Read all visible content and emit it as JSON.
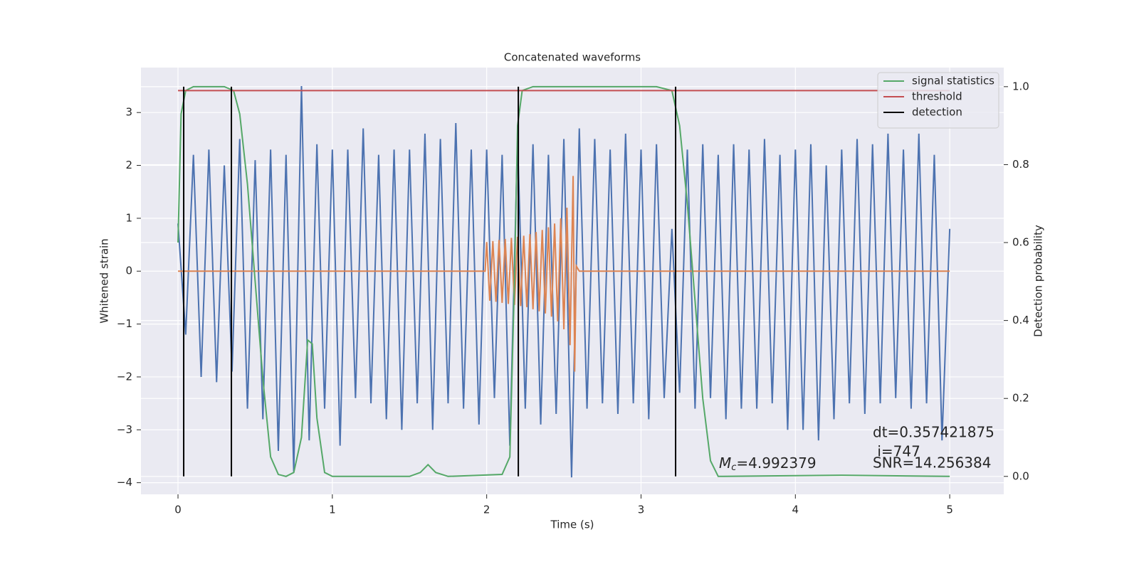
{
  "chart_data": {
    "type": "line",
    "title": "Concatenated waveforms",
    "xlabel": "Time (s)",
    "ylabel": "Whitened strain",
    "y2label": "Detection probability",
    "xlim": [
      -0.24,
      5.35
    ],
    "ylim": [
      -4.22,
      3.85
    ],
    "y2lim": [
      -0.046,
      1.049
    ],
    "xticks": [
      0,
      1,
      2,
      3,
      4,
      5
    ],
    "yticks": [
      {
        "value": -4,
        "label": "−4"
      },
      {
        "value": -3,
        "label": "−3"
      },
      {
        "value": -2,
        "label": "−2"
      },
      {
        "value": -1,
        "label": "−1"
      },
      0,
      1,
      2,
      3
    ],
    "y2ticks": [
      {
        "value": 0,
        "label": "0.0"
      },
      {
        "value": 0.2,
        "label": "0.2"
      },
      {
        "value": 0.4,
        "label": "0.4"
      },
      {
        "value": 0.6,
        "label": "0.6"
      },
      {
        "value": 0.8,
        "label": "0.8"
      },
      {
        "value": 1,
        "label": "1.0"
      }
    ],
    "grid": true,
    "legend": "upper right",
    "series": [
      {
        "color": "#4c72b0",
        "axis": "y",
        "x": [
          0,
          0.05,
          0.1,
          0.15,
          0.2,
          0.25,
          0.3,
          0.35,
          0.4,
          0.45,
          0.5,
          0.55,
          0.6,
          0.65,
          0.7,
          0.75,
          0.8,
          0.85,
          0.9,
          0.95,
          1.0,
          1.05,
          1.1,
          1.15,
          1.2,
          1.25,
          1.3,
          1.35,
          1.4,
          1.45,
          1.5,
          1.55,
          1.6,
          1.65,
          1.7,
          1.75,
          1.8,
          1.85,
          1.9,
          1.95,
          2.0,
          2.05,
          2.1,
          2.15,
          2.2,
          2.25,
          2.3,
          2.35,
          2.4,
          2.45,
          2.5,
          2.55,
          2.6,
          2.65,
          2.7,
          2.75,
          2.8,
          2.85,
          2.9,
          2.95,
          3.0,
          3.05,
          3.1,
          3.15,
          3.2,
          3.25,
          3.3,
          3.35,
          3.4,
          3.45,
          3.5,
          3.55,
          3.6,
          3.65,
          3.7,
          3.75,
          3.8,
          3.85,
          3.9,
          3.95,
          4.0,
          4.05,
          4.1,
          4.15,
          4.2,
          4.25,
          4.3,
          4.35,
          4.4,
          4.45,
          4.5,
          4.55,
          4.6,
          4.65,
          4.7,
          4.75,
          4.8,
          4.85,
          4.9,
          4.95,
          5.0
        ],
        "values": [
          0.9,
          -1.2,
          2.2,
          -2.0,
          2.3,
          -2.1,
          2.0,
          -1.9,
          2.5,
          -2.6,
          2.1,
          -2.8,
          2.3,
          -3.4,
          2.2,
          -3.8,
          3.5,
          -3.2,
          2.4,
          -2.6,
          2.3,
          -3.3,
          2.3,
          -2.4,
          2.7,
          -2.5,
          2.2,
          -2.8,
          2.3,
          -3.0,
          2.3,
          -2.5,
          2.6,
          -3.0,
          2.5,
          -2.5,
          2.8,
          -2.6,
          2.3,
          -2.9,
          2.3,
          -2.4,
          2.2,
          -3.3,
          2.5,
          -2.6,
          2.4,
          -2.9,
          2.2,
          -2.7,
          2.5,
          -3.9,
          2.7,
          -2.6,
          2.5,
          -2.5,
          2.3,
          -2.7,
          2.6,
          -2.5,
          2.3,
          -2.8,
          2.4,
          -2.4,
          0.8,
          -2.3,
          2.3,
          -2.6,
          2.4,
          -2.4,
          2.2,
          -2.8,
          2.4,
          -2.6,
          2.3,
          -2.6,
          2.5,
          -2.5,
          2.2,
          -3.0,
          2.3,
          -3.0,
          2.4,
          -3.2,
          2.0,
          -2.8,
          2.3,
          -2.5,
          2.5,
          -2.7,
          2.4,
          -2.5,
          2.6,
          -2.4,
          2.3,
          -2.6,
          2.6,
          -2.5,
          2.2,
          -3.2,
          0.8
        ]
      },
      {
        "color": "#dd8452",
        "axis": "y",
        "x": [
          0,
          1.99,
          2.0,
          2.02,
          2.04,
          2.06,
          2.08,
          2.1,
          2.12,
          2.14,
          2.16,
          2.18,
          2.2,
          2.22,
          2.24,
          2.26,
          2.28,
          2.3,
          2.32,
          2.34,
          2.36,
          2.38,
          2.4,
          2.42,
          2.44,
          2.46,
          2.48,
          2.5,
          2.52,
          2.54,
          2.56,
          2.57,
          2.58,
          2.6,
          5.0
        ],
        "values": [
          0,
          0,
          0.55,
          -0.56,
          0.57,
          -0.58,
          0.59,
          -0.6,
          0.61,
          -0.62,
          0.63,
          -0.64,
          0.65,
          -0.66,
          0.67,
          -0.68,
          0.7,
          -0.72,
          0.74,
          -0.76,
          0.78,
          -0.8,
          0.83,
          -0.86,
          0.9,
          -0.95,
          1.0,
          -1.1,
          1.2,
          -1.4,
          1.8,
          -1.9,
          0.1,
          0,
          0
        ]
      },
      {
        "name": "signal statistics",
        "color": "#55a868",
        "axis": "y2",
        "x": [
          0,
          0.02,
          0.05,
          0.1,
          0.3,
          0.36,
          0.4,
          0.45,
          0.5,
          0.55,
          0.6,
          0.65,
          0.7,
          0.75,
          0.8,
          0.84,
          0.87,
          0.9,
          0.95,
          1.0,
          1.5,
          1.57,
          1.62,
          1.67,
          1.75,
          2.1,
          2.15,
          2.18,
          2.2,
          2.23,
          2.3,
          3.1,
          3.2,
          3.25,
          3.3,
          3.35,
          3.4,
          3.45,
          3.5,
          4.3,
          5.0
        ],
        "values": [
          0.6,
          0.93,
          0.99,
          1.0,
          1.0,
          0.99,
          0.93,
          0.75,
          0.5,
          0.25,
          0.05,
          0.005,
          0.0,
          0.01,
          0.1,
          0.35,
          0.34,
          0.15,
          0.01,
          0.0,
          0.0,
          0.01,
          0.03,
          0.01,
          0.0,
          0.005,
          0.05,
          0.5,
          0.9,
          0.99,
          1.0,
          1.0,
          0.99,
          0.9,
          0.7,
          0.45,
          0.2,
          0.04,
          0.0,
          0.003,
          0.0
        ]
      },
      {
        "name": "threshold",
        "color": "#c44e52",
        "axis": "y2",
        "x": [
          0,
          5
        ],
        "values": [
          0.99,
          0.99
        ]
      }
    ],
    "detection": {
      "name": "detection",
      "color": "#000000",
      "x": [
        0.037,
        0.346,
        2.205,
        3.224
      ],
      "span": [
        0,
        1
      ]
    },
    "annotations": {
      "dt": "dt=0.357421875",
      "i": " i=747",
      "snr": "SNR=14.256384",
      "mc_symbol": "M",
      "mc_subscript": "c",
      "mc_value": "=4.992379"
    }
  }
}
